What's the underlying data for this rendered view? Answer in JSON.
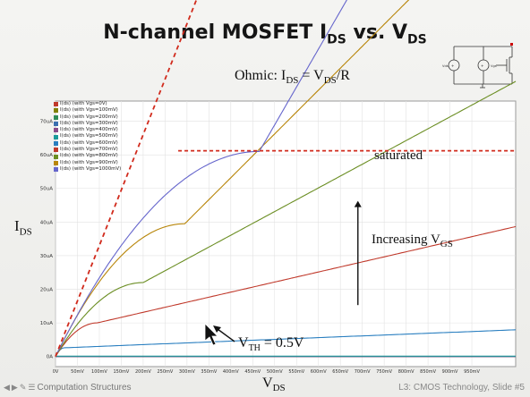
{
  "slide": {
    "title": "N-channel MOSFET I",
    "title_sub1": "DS",
    "title_mid": " vs. V",
    "title_sub2": "DS"
  },
  "annotations": {
    "ohmic": "Ohmic: I",
    "ohmic_sub1": "DS",
    "ohmic_mid": " = V",
    "ohmic_sub2": "DS",
    "ohmic_end": "/R",
    "saturated": "saturated",
    "increasing": "Increasing V",
    "increasing_sub": "GS",
    "vth": "V",
    "vth_sub": "TH",
    "vth_end": " = 0.5V",
    "ylabel": "I",
    "ylabel_sub": "DS",
    "xlabel": "V",
    "xlabel_sub": "DS"
  },
  "footer": {
    "left": "Computation Structures",
    "right": "L3: CMOS Technology, Slide #5"
  },
  "circuit": {
    "label_a": "Vds",
    "label_b": "Vgs"
  },
  "chart_data": {
    "type": "line",
    "title": "",
    "xlabel": "VDS",
    "ylabel": "IDS",
    "xlim": [
      0,
      1050
    ],
    "ylim": [
      -3,
      76
    ],
    "x_unit": "mV",
    "y_unit": "uA",
    "x_ticks": [
      "0V",
      "50mV",
      "100mV",
      "150mV",
      "200mV",
      "250mV",
      "300mV",
      "350mV",
      "400mV",
      "450mV",
      "500mV",
      "550mV",
      "600mV",
      "650mV",
      "700mV",
      "750mV",
      "800mV",
      "850mV",
      "900mV",
      "950mV"
    ],
    "x_tick_values": [
      0,
      50,
      100,
      150,
      200,
      250,
      300,
      350,
      400,
      450,
      500,
      550,
      600,
      650,
      700,
      750,
      800,
      850,
      900,
      950
    ],
    "y_ticks": [
      "0A",
      "10uA",
      "20uA",
      "30uA",
      "40uA",
      "50uA",
      "60uA",
      "70uA"
    ],
    "y_tick_values": [
      0,
      10,
      20,
      30,
      40,
      50,
      60,
      70
    ],
    "grid": true,
    "series": [
      {
        "name": "I(ds) (with Vgs=0V)",
        "color": "#c0392b",
        "params": [
          0,
          0,
          0
        ]
      },
      {
        "name": "I(ds) (with Vgs=100mV)",
        "color": "#808000",
        "params": [
          0,
          0,
          0
        ]
      },
      {
        "name": "I(ds) (with Vgs=200mV)",
        "color": "#2e8b57",
        "params": [
          0,
          0,
          0
        ]
      },
      {
        "name": "I(ds) (with Vgs=300mV)",
        "color": "#3a6fb0",
        "params": [
          0,
          0,
          0
        ]
      },
      {
        "name": "I(ds) (with Vgs=400mV)",
        "color": "#8a4a8a",
        "params": [
          0,
          0,
          0
        ]
      },
      {
        "name": "I(ds) (with Vgs=500mV)",
        "color": "#1a9a9a",
        "params": [
          0.1,
          0,
          0
        ]
      },
      {
        "name": "I(ds) (with Vgs=600mV)",
        "color": "#2a7fc0",
        "params": [
          2.6,
          20,
          0.002
        ]
      },
      {
        "name": "I(ds) (with Vgs=700mV)",
        "color": "#c0392b",
        "params": [
          10,
          95,
          0.003
        ]
      },
      {
        "name": "I(ds) (with Vgs=800mV)",
        "color": "#6b8e23",
        "params": [
          22,
          200,
          0.0032
        ]
      },
      {
        "name": "I(ds) (with Vgs=900mV)",
        "color": "#b8860b",
        "params": [
          39.5,
          295,
          0.0033
        ]
      },
      {
        "name": "I(ds) (with Vgs=1000mV)",
        "color": "#6666cc",
        "params": [
          61,
          465,
          0.0037
        ]
      }
    ],
    "ohmic_line": {
      "slope_uA_per_mV": 0.33,
      "x_range": [
        0,
        400
      ]
    },
    "saturation_ref": {
      "y": 61.2,
      "x_range": [
        280,
        1050
      ]
    },
    "arrow": {
      "x": 690,
      "y_from": 15.3,
      "y_to": 46.3
    }
  }
}
